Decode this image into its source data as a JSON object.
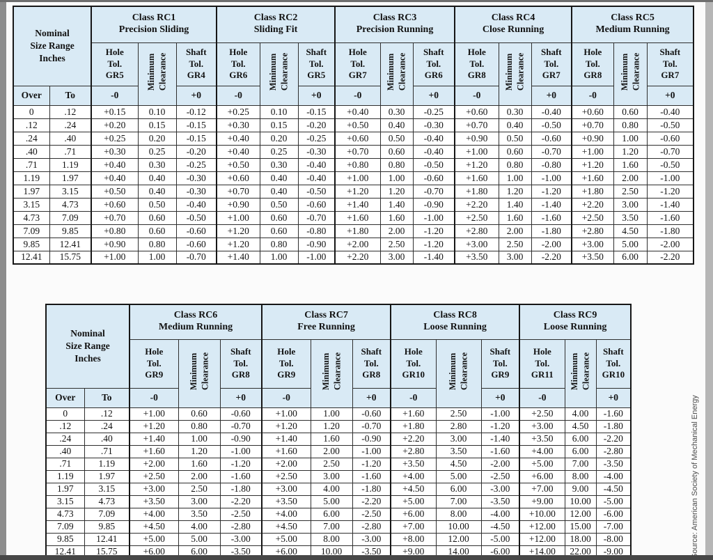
{
  "source_note": "Source: American Society of Mechanical Energy",
  "header_colors": {
    "header_fill": "#d9eaf5",
    "border": "#161616"
  },
  "tables": [
    {
      "name": "rc1-rc5-fits-table",
      "size_header": "Nominal\nSize Range\nInches",
      "over_label": "Over",
      "to_label": "To",
      "min_clearance_label": "Minimum\nClearance",
      "classes": [
        {
          "title": "Class RC1",
          "subtitle": "Precision Sliding",
          "hole": "Hole\nTol.\nGR5",
          "shaft": "Shaft\nTol.\nGR4",
          "hole_sign": "-0",
          "shaft_sign": "+0"
        },
        {
          "title": "Class RC2",
          "subtitle": "Sliding Fit",
          "hole": "Hole\nTol.\nGR6",
          "shaft": "Shaft\nTol.\nGR5",
          "hole_sign": "-0",
          "shaft_sign": "+0"
        },
        {
          "title": "Class RC3",
          "subtitle": "Precision Running",
          "hole": "Hole\nTol.\nGR7",
          "shaft": "Shaft\nTol.\nGR6",
          "hole_sign": "-0",
          "shaft_sign": "+0"
        },
        {
          "title": "Class RC4",
          "subtitle": "Close Running",
          "hole": "Hole\nTol.\nGR8",
          "shaft": "Shaft\nTol.\nGR7",
          "hole_sign": "-0",
          "shaft_sign": "+0"
        },
        {
          "title": "Class RC5",
          "subtitle": "Medium Running",
          "hole": "Hole\nTol.\nGR8",
          "shaft": "Shaft\nTol.\nGR7",
          "hole_sign": "-0",
          "shaft_sign": "+0"
        }
      ],
      "rows": [
        {
          "over": "0",
          "to": ".12",
          "cells": [
            "+0.15",
            "0.10",
            "-0.12",
            "+0.25",
            "0.10",
            "-0.15",
            "+0.40",
            "0.30",
            "-0.25",
            "+0.60",
            "0.30",
            "-0.40",
            "+0.60",
            "0.60",
            "-0.40"
          ]
        },
        {
          "over": ".12",
          "to": ".24",
          "cells": [
            "+0.20",
            "0.15",
            "-0.15",
            "+0.30",
            "0.15",
            "-0.20",
            "+0.50",
            "0.40",
            "-0.30",
            "+0.70",
            "0.40",
            "-0.50",
            "+0.70",
            "0.80",
            "-0.50"
          ]
        },
        {
          "over": ".24",
          "to": ".40",
          "cells": [
            "+0.25",
            "0.20",
            "-0.15",
            "+0.40",
            "0.20",
            "-0.25",
            "+0.60",
            "0.50",
            "-0.40",
            "+0.90",
            "0.50",
            "-0.60",
            "+0.90",
            "1.00",
            "-0.60"
          ]
        },
        {
          "over": ".40",
          "to": ".71",
          "cells": [
            "+0.30",
            "0.25",
            "-0.20",
            "+0.40",
            "0.25",
            "-0.30",
            "+0.70",
            "0.60",
            "-0.40",
            "+1.00",
            "0.60",
            "-0.70",
            "+1.00",
            "1.20",
            "-0.70"
          ]
        },
        {
          "over": ".71",
          "to": "1.19",
          "cells": [
            "+0.40",
            "0.30",
            "-0.25",
            "+0.50",
            "0.30",
            "-0.40",
            "+0.80",
            "0.80",
            "-0.50",
            "+1.20",
            "0.80",
            "-0.80",
            "+1.20",
            "1.60",
            "-0.50"
          ]
        },
        {
          "over": "1.19",
          "to": "1.97",
          "cells": [
            "+0.40",
            "0.40",
            "-0.30",
            "+0.60",
            "0.40",
            "-0.40",
            "+1.00",
            "1.00",
            "-0.60",
            "+1.60",
            "1.00",
            "-1.00",
            "+1.60",
            "2.00",
            "-1.00"
          ]
        },
        {
          "over": "1.97",
          "to": "3.15",
          "cells": [
            "+0.50",
            "0.40",
            "-0.30",
            "+0.70",
            "0.40",
            "-0.50",
            "+1.20",
            "1.20",
            "-0.70",
            "+1.80",
            "1.20",
            "-1.20",
            "+1.80",
            "2.50",
            "-1.20"
          ]
        },
        {
          "over": "3.15",
          "to": "4.73",
          "cells": [
            "+0.60",
            "0.50",
            "-0.40",
            "+0.90",
            "0.50",
            "-0.60",
            "+1.40",
            "1.40",
            "-0.90",
            "+2.20",
            "1.40",
            "-1.40",
            "+2.20",
            "3.00",
            "-1.40"
          ]
        },
        {
          "over": "4.73",
          "to": "7.09",
          "cells": [
            "+0.70",
            "0.60",
            "-0.50",
            "+1.00",
            "0.60",
            "-0.70",
            "+1.60",
            "1.60",
            "-1.00",
            "+2.50",
            "1.60",
            "-1.60",
            "+2.50",
            "3.50",
            "-1.60"
          ]
        },
        {
          "over": "7.09",
          "to": "9.85",
          "cells": [
            "+0.80",
            "0.60",
            "-0.60",
            "+1.20",
            "0.60",
            "-0.80",
            "+1.80",
            "2.00",
            "-1.20",
            "+2.80",
            "2.00",
            "-1.80",
            "+2.80",
            "4.50",
            "-1.80"
          ]
        },
        {
          "over": "9.85",
          "to": "12.41",
          "cells": [
            "+0.90",
            "0.80",
            "-0.60",
            "+1.20",
            "0.80",
            "-0.90",
            "+2.00",
            "2.50",
            "-1.20",
            "+3.00",
            "2.50",
            "-2.00",
            "+3.00",
            "5.00",
            "-2.00"
          ]
        },
        {
          "over": "12.41",
          "to": "15.75",
          "cells": [
            "+1.00",
            "1.00",
            "-0.70",
            "+1.40",
            "1.00",
            "-1.00",
            "+2.20",
            "3.00",
            "-1.40",
            "+3.50",
            "3.00",
            "-2.20",
            "+3.50",
            "6.00",
            "-2.20"
          ]
        }
      ]
    },
    {
      "name": "rc6-rc9-fits-table",
      "size_header": "Nominal\nSize Range\nInches",
      "over_label": "Over",
      "to_label": "To",
      "min_clearance_label": "Minimum\nClearance",
      "classes": [
        {
          "title": "Class RC6",
          "subtitle": "Medium Running",
          "hole": "Hole\nTol.\nGR9",
          "shaft": "Shaft\nTol.\nGR8",
          "hole_sign": "-0",
          "shaft_sign": "+0"
        },
        {
          "title": "Class RC7",
          "subtitle": "Free Running",
          "hole": "Hole\nTol.\nGR9",
          "shaft": "Shaft\nTol.\nGR8",
          "hole_sign": "-0",
          "shaft_sign": "+0"
        },
        {
          "title": "Class RC8",
          "subtitle": "Loose Running",
          "hole": "Hole\nTol.\nGR10",
          "shaft": "Shaft\nTol.\nGR9",
          "hole_sign": "-0",
          "shaft_sign": "+0"
        },
        {
          "title": "Class RC9",
          "subtitle": "Loose Running",
          "hole": "Hole\nTol.\nGR11",
          "shaft": "Shaft\nTol.\nGR10",
          "hole_sign": "-0",
          "shaft_sign": "+0"
        }
      ],
      "rows": [
        {
          "over": "0",
          "to": ".12",
          "cells": [
            "+1.00",
            "0.60",
            "-0.60",
            "+1.00",
            "1.00",
            "-0.60",
            "+1.60",
            "2.50",
            "-1.00",
            "+2.50",
            "4.00",
            "-1.60"
          ]
        },
        {
          "over": ".12",
          "to": ".24",
          "cells": [
            "+1.20",
            "0.80",
            "-0.70",
            "+1.20",
            "1.20",
            "-0.70",
            "+1.80",
            "2.80",
            "-1.20",
            "+3.00",
            "4.50",
            "-1.80"
          ]
        },
        {
          "over": ".24",
          "to": ".40",
          "cells": [
            "+1.40",
            "1.00",
            "-0.90",
            "+1.40",
            "1.60",
            "-0.90",
            "+2.20",
            "3.00",
            "-1.40",
            "+3.50",
            "6.00",
            "-2.20"
          ]
        },
        {
          "over": ".40",
          "to": ".71",
          "cells": [
            "+1.60",
            "1.20",
            "-1.00",
            "+1.60",
            "2.00",
            "-1.00",
            "+2.80",
            "3.50",
            "-1.60",
            "+4.00",
            "6.00",
            "-2.80"
          ]
        },
        {
          "over": ".71",
          "to": "1.19",
          "cells": [
            "+2.00",
            "1.60",
            "-1.20",
            "+2.00",
            "2.50",
            "-1.20",
            "+3.50",
            "4.50",
            "-2.00",
            "+5.00",
            "7.00",
            "-3.50"
          ]
        },
        {
          "over": "1.19",
          "to": "1.97",
          "cells": [
            "+2.50",
            "2.00",
            "-1.60",
            "+2.50",
            "3.00",
            "-1.60",
            "+4.00",
            "5.00",
            "-2.50",
            "+6.00",
            "8.00",
            "-4.00"
          ]
        },
        {
          "over": "1.97",
          "to": "3.15",
          "cells": [
            "+3.00",
            "2.50",
            "-1.80",
            "+3.00",
            "4.00",
            "-1.80",
            "+4.50",
            "6.00",
            "-3.00",
            "+7.00",
            "9.00",
            "-4.50"
          ]
        },
        {
          "over": "3.15",
          "to": "4.73",
          "cells": [
            "+3.50",
            "3.00",
            "-2.20",
            "+3.50",
            "5.00",
            "-2.20",
            "+5.00",
            "7.00",
            "-3.50",
            "+9.00",
            "10.00",
            "-5.00"
          ]
        },
        {
          "over": "4.73",
          "to": "7.09",
          "cells": [
            "+4.00",
            "3.50",
            "-2.50",
            "+4.00",
            "6.00",
            "-2.50",
            "+6.00",
            "8.00",
            "-4.00",
            "+10.00",
            "12.00",
            "-6.00"
          ]
        },
        {
          "over": "7.09",
          "to": "9.85",
          "cells": [
            "+4.50",
            "4.00",
            "-2.80",
            "+4.50",
            "7.00",
            "-2.80",
            "+7.00",
            "10.00",
            "-4.50",
            "+12.00",
            "15.00",
            "-7.00"
          ]
        },
        {
          "over": "9.85",
          "to": "12.41",
          "cells": [
            "+5.00",
            "5.00",
            "-3.00",
            "+5.00",
            "8.00",
            "-3.00",
            "+8.00",
            "12.00",
            "-5.00",
            "+12.00",
            "18.00",
            "-8.00"
          ]
        },
        {
          "over": "12.41",
          "to": "15.75",
          "cells": [
            "+6.00",
            "6.00",
            "-3.50",
            "+6.00",
            "10.00",
            "-3.50",
            "+9.00",
            "14.00",
            "-6.00",
            "+14.00",
            "22.00",
            "-9.00"
          ]
        }
      ]
    }
  ]
}
